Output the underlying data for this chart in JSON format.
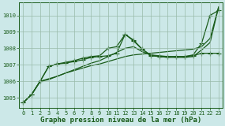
{
  "title": "Graphe pression niveau de la mer (hPa)",
  "bg_color": "#cce8e8",
  "grid_color": "#99bbaa",
  "line_color": "#1a5c1a",
  "xlim_min": -0.5,
  "xlim_max": 23.5,
  "ylim_min": 1004.4,
  "ylim_max": 1010.8,
  "yticks": [
    1005,
    1006,
    1007,
    1008,
    1009,
    1010
  ],
  "xticks": [
    0,
    1,
    2,
    3,
    4,
    5,
    6,
    7,
    8,
    9,
    10,
    11,
    12,
    13,
    14,
    15,
    16,
    17,
    18,
    19,
    20,
    21,
    22,
    23
  ],
  "series_with_markers": [
    [
      1004.7,
      1005.2,
      1006.0,
      1006.9,
      1007.05,
      1007.1,
      1007.2,
      1007.3,
      1007.45,
      1007.5,
      1007.55,
      1007.7,
      1008.85,
      1008.5,
      1007.95,
      1007.55,
      1007.5,
      1007.5,
      1007.5,
      1007.5,
      1007.55,
      1007.7,
      1007.7,
      1007.7
    ],
    [
      1004.7,
      1005.2,
      1006.0,
      1006.9,
      1007.05,
      1007.15,
      1007.25,
      1007.4,
      1007.5,
      1007.55,
      1008.0,
      1008.1,
      1008.85,
      1008.45,
      1007.95,
      1007.6,
      1007.55,
      1007.5,
      1007.5,
      1007.5,
      1007.6,
      1008.3,
      1010.0,
      1010.3
    ]
  ],
  "series_no_markers": [
    [
      1004.7,
      1005.2,
      1006.0,
      1006.1,
      1006.3,
      1006.5,
      1006.65,
      1006.8,
      1006.95,
      1007.05,
      1007.2,
      1007.35,
      1007.5,
      1007.6,
      1007.65,
      1007.7,
      1007.75,
      1007.8,
      1007.85,
      1007.9,
      1007.95,
      1008.1,
      1008.6,
      1010.5
    ],
    [
      1004.7,
      1005.2,
      1006.0,
      1006.15,
      1006.3,
      1006.5,
      1006.7,
      1006.9,
      1007.1,
      1007.25,
      1007.5,
      1007.75,
      1008.0,
      1008.1,
      1007.8,
      1007.6,
      1007.5,
      1007.45,
      1007.45,
      1007.45,
      1007.5,
      1007.9,
      1008.35,
      1010.5
    ]
  ],
  "marker": "+",
  "marker_size": 4.0,
  "linewidth": 0.9,
  "title_fontsize": 6.5,
  "tick_fontsize": 5.0
}
